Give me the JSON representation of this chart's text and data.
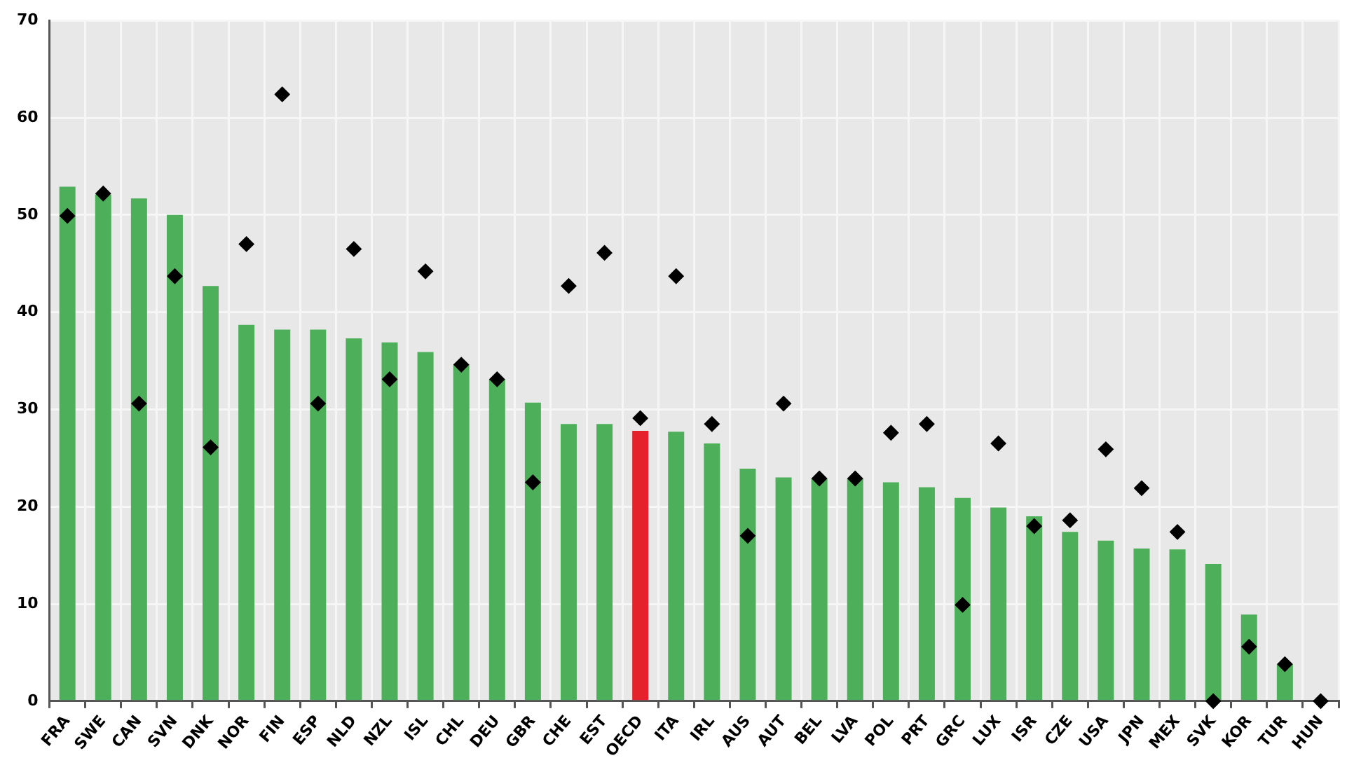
{
  "chart_data": {
    "type": "bar",
    "categories": [
      "FRA",
      "SWE",
      "CAN",
      "SVN",
      "DNK",
      "NOR",
      "FIN",
      "ESP",
      "NLD",
      "NZL",
      "ISL",
      "CHL",
      "DEU",
      "GBR",
      "CHE",
      "EST",
      "OECD",
      "ITA",
      "IRL",
      "AUS",
      "AUT",
      "BEL",
      "LVA",
      "POL",
      "PRT",
      "GRC",
      "LUX",
      "ISR",
      "CZE",
      "USA",
      "JPN",
      "MEX",
      "SVK",
      "KOR",
      "TUR",
      "HUN"
    ],
    "series": [
      {
        "type": "bar",
        "colors": [
          "#4daf5a",
          "#4daf5a",
          "#4daf5a",
          "#4daf5a",
          "#4daf5a",
          "#4daf5a",
          "#4daf5a",
          "#4daf5a",
          "#4daf5a",
          "#4daf5a",
          "#4daf5a",
          "#4daf5a",
          "#4daf5a",
          "#4daf5a",
          "#4daf5a",
          "#4daf5a",
          "#e3222b",
          "#4daf5a",
          "#4daf5a",
          "#4daf5a",
          "#4daf5a",
          "#4daf5a",
          "#4daf5a",
          "#4daf5a",
          "#4daf5a",
          "#4daf5a",
          "#4daf5a",
          "#4daf5a",
          "#4daf5a",
          "#4daf5a",
          "#4daf5a",
          "#4daf5a",
          "#4daf5a",
          "#4daf5a",
          "#4daf5a",
          "#4daf5a"
        ],
        "values": [
          52.9,
          52.1,
          51.7,
          50.0,
          42.7,
          38.7,
          38.2,
          38.2,
          37.3,
          36.9,
          35.9,
          34.6,
          33.1,
          30.7,
          28.5,
          28.5,
          27.8,
          27.7,
          26.5,
          23.9,
          23.0,
          22.9,
          22.9,
          22.5,
          22.0,
          20.9,
          19.9,
          19.0,
          17.4,
          16.5,
          15.7,
          15.6,
          14.1,
          8.9,
          3.8,
          0
        ]
      },
      {
        "type": "scatter",
        "color": "#000000",
        "marker": "diamond",
        "x": [
          "FRA",
          "SWE",
          "CAN",
          "SVN",
          "DNK",
          "NOR",
          "FIN",
          "ESP",
          "NLD",
          "NZL",
          "ISL",
          "CHL",
          "DEU",
          "GBR",
          "CHE",
          "EST",
          "OECD",
          "ITA",
          "IRL",
          "AUS",
          "AUT",
          "BEL",
          "LVA",
          "POL",
          "PRT",
          "GRC",
          "LUX",
          "ISR",
          "CZE",
          "USA",
          "JPN",
          "MEX",
          "SVK",
          "KOR",
          "TUR",
          "HUN"
        ],
        "values": [
          49.9,
          52.2,
          30.6,
          43.7,
          26.1,
          47.0,
          62.4,
          30.6,
          46.5,
          33.1,
          44.2,
          34.6,
          33.1,
          22.5,
          42.7,
          46.1,
          29.1,
          43.7,
          28.5,
          17.0,
          30.6,
          22.9,
          22.9,
          27.6,
          28.5,
          9.9,
          26.5,
          18.0,
          18.6,
          25.9,
          21.9,
          17.4,
          0,
          5.6,
          3.8,
          0
        ]
      }
    ],
    "ylim": [
      0,
      70
    ],
    "yticks": [
      0,
      10,
      20,
      30,
      40,
      50,
      60,
      70
    ],
    "grid": true,
    "legend": false
  }
}
